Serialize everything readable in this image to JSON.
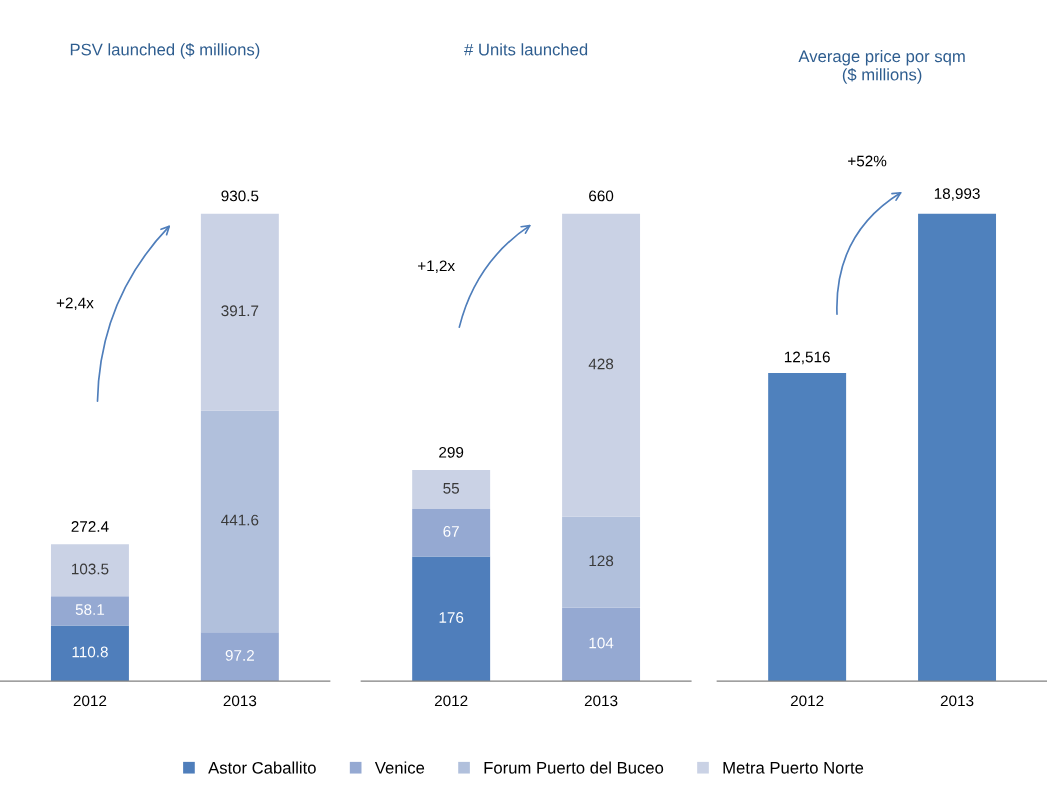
{
  "chart_data": [
    {
      "type": "bar",
      "title": "PSV launched ($ millions)",
      "categories": [
        "2012",
        "2013"
      ],
      "stacked": true,
      "data_labels": true,
      "totals": [
        "272.4",
        "930.5"
      ],
      "annotations": [
        "+2,4x"
      ],
      "legend": "bottom",
      "tick_labels": "x",
      "series": [
        {
          "name": "Astor Caballito",
          "color": "#4f7ebb",
          "values": [
            110.8,
            null
          ]
        },
        {
          "name": "Venice",
          "color": "#95a9d2",
          "values": [
            58.1,
            97.2
          ]
        },
        {
          "name": "Forum Puerto del Buceo",
          "color": "#b1c0dc",
          "values": [
            null,
            441.6
          ]
        },
        {
          "name": "Metra Puerto Norte",
          "color": "#cad2e5",
          "values": [
            103.5,
            391.7
          ]
        }
      ]
    },
    {
      "type": "bar",
      "title": "# Units launched",
      "categories": [
        "2012",
        "2013"
      ],
      "stacked": true,
      "data_labels": true,
      "totals": [
        "299",
        "660"
      ],
      "annotations": [
        "+1,2x"
      ],
      "legend": "bottom",
      "tick_labels": "x",
      "series": [
        {
          "name": "Astor Caballito",
          "color": "#4f7ebb",
          "values": [
            176,
            null
          ]
        },
        {
          "name": "Venice",
          "color": "#95a9d2",
          "values": [
            67,
            104
          ]
        },
        {
          "name": "Forum Puerto del Buceo",
          "color": "#b1c0dc",
          "values": [
            null,
            128
          ]
        },
        {
          "name": "Metra Puerto Norte",
          "color": "#cad2e5",
          "values": [
            55,
            428
          ]
        }
      ]
    },
    {
      "type": "bar",
      "title": "Average price por sqm\n($ millions)",
      "categories": [
        "2012",
        "2013"
      ],
      "data_labels": true,
      "annotations": [
        "+52%"
      ],
      "tick_labels": "x",
      "series": [
        {
          "color": "#4f81bd",
          "values": [
            12516,
            18993
          ],
          "value_labels": [
            "12,516",
            "18,993"
          ]
        }
      ]
    }
  ]
}
